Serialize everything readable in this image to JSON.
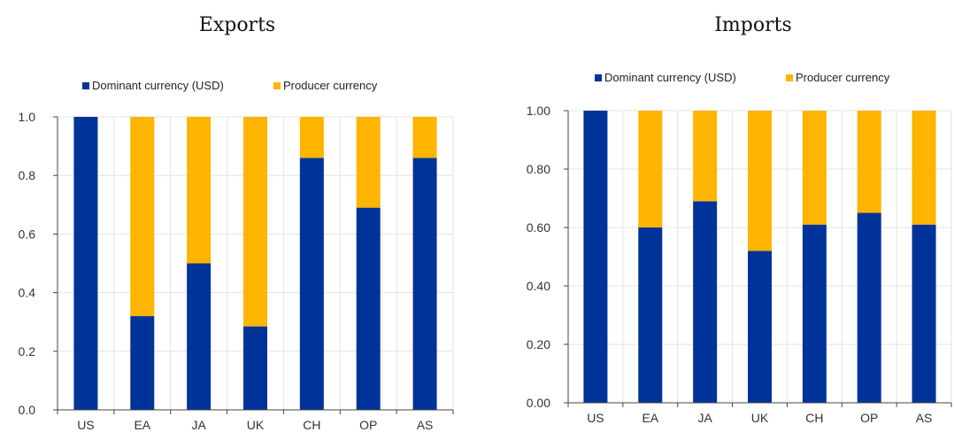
{
  "colors": {
    "dominant": "#003399",
    "producer": "#FFB400"
  },
  "chart_data": [
    {
      "type": "bar",
      "stacked": true,
      "title": "Exports",
      "categories": [
        "US",
        "EA",
        "JA",
        "UK",
        "CH",
        "OP",
        "AS"
      ],
      "series": [
        {
          "name": "Dominant currency (USD)",
          "values": [
            1.0,
            0.32,
            0.5,
            0.285,
            0.86,
            0.69,
            0.86
          ]
        },
        {
          "name": "Producer currency",
          "values": [
            0.0,
            0.68,
            0.5,
            0.715,
            0.14,
            0.31,
            0.14
          ]
        }
      ],
      "ylim": [
        0,
        1
      ],
      "yticks": [
        "0.0",
        "0.2",
        "0.4",
        "0.6",
        "0.8",
        "1.0"
      ],
      "grid": true,
      "legend": "top"
    },
    {
      "type": "bar",
      "stacked": true,
      "title": "Imports",
      "categories": [
        "US",
        "EA",
        "JA",
        "UK",
        "CH",
        "OP",
        "AS"
      ],
      "series": [
        {
          "name": "Dominant currency (USD)",
          "values": [
            1.0,
            0.6,
            0.69,
            0.52,
            0.61,
            0.65,
            0.61
          ]
        },
        {
          "name": "Producer currency",
          "values": [
            0.0,
            0.4,
            0.31,
            0.48,
            0.39,
            0.35,
            0.39
          ]
        }
      ],
      "ylim": [
        0,
        1
      ],
      "yticks": [
        "0.00",
        "0.20",
        "0.40",
        "0.60",
        "0.80",
        "1.00"
      ],
      "grid": true,
      "legend": "top"
    }
  ]
}
